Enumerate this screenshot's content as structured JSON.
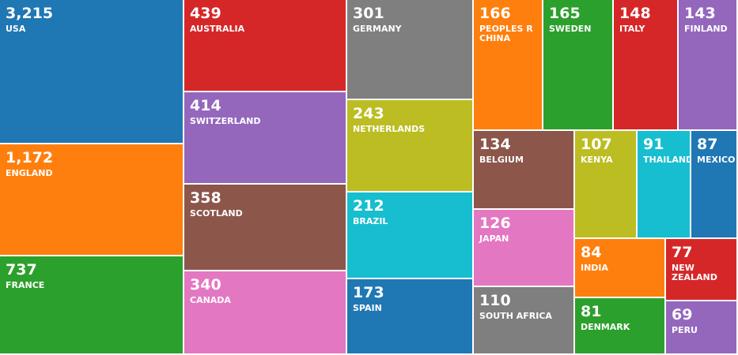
{
  "chart_data": {
    "type": "treemap",
    "items": [
      {
        "label": "USA",
        "value": 3215,
        "value_text": "3,215",
        "color": "#1f77b4"
      },
      {
        "label": "ENGLAND",
        "value": 1172,
        "value_text": "1,172",
        "color": "#ff7f0e"
      },
      {
        "label": "FRANCE",
        "value": 737,
        "value_text": "737",
        "color": "#2ca02c"
      },
      {
        "label": "AUSTRALIA",
        "value": 439,
        "value_text": "439",
        "color": "#d62728"
      },
      {
        "label": "SWITZERLAND",
        "value": 414,
        "value_text": "414",
        "color": "#9467bd"
      },
      {
        "label": "SCOTLAND",
        "value": 358,
        "value_text": "358",
        "color": "#8c564b"
      },
      {
        "label": "CANADA",
        "value": 340,
        "value_text": "340",
        "color": "#e377c2"
      },
      {
        "label": "GERMANY",
        "value": 301,
        "value_text": "301",
        "color": "#7f7f7f"
      },
      {
        "label": "NETHERLANDS",
        "value": 243,
        "value_text": "243",
        "color": "#bcbd22"
      },
      {
        "label": "BRAZIL",
        "value": 212,
        "value_text": "212",
        "color": "#17becf"
      },
      {
        "label": "SPAIN",
        "value": 173,
        "value_text": "173",
        "color": "#1f77b4"
      },
      {
        "label": "PEOPLES R CHINA",
        "value": 166,
        "value_text": "166",
        "color": "#ff7f0e"
      },
      {
        "label": "SWEDEN",
        "value": 165,
        "value_text": "165",
        "color": "#2ca02c"
      },
      {
        "label": "ITALY",
        "value": 148,
        "value_text": "148",
        "color": "#d62728"
      },
      {
        "label": "FINLAND",
        "value": 143,
        "value_text": "143",
        "color": "#9467bd"
      },
      {
        "label": "BELGIUM",
        "value": 134,
        "value_text": "134",
        "color": "#8c564b"
      },
      {
        "label": "JAPAN",
        "value": 126,
        "value_text": "126",
        "color": "#e377c2"
      },
      {
        "label": "SOUTH AFRICA",
        "value": 110,
        "value_text": "110",
        "color": "#7f7f7f"
      },
      {
        "label": "KENYA",
        "value": 107,
        "value_text": "107",
        "color": "#bcbd22"
      },
      {
        "label": "THAILAND",
        "value": 91,
        "value_text": "91",
        "color": "#17becf"
      },
      {
        "label": "MEXICO",
        "value": 87,
        "value_text": "87",
        "color": "#1f77b4"
      },
      {
        "label": "INDIA",
        "value": 84,
        "value_text": "84",
        "color": "#ff7f0e"
      },
      {
        "label": "DENMARK",
        "value": 81,
        "value_text": "81",
        "color": "#2ca02c"
      },
      {
        "label": "NEW ZEALAND",
        "value": 77,
        "value_text": "77",
        "color": "#d62728"
      },
      {
        "label": "PERU",
        "value": 69,
        "value_text": "69",
        "color": "#9467bd"
      }
    ]
  }
}
